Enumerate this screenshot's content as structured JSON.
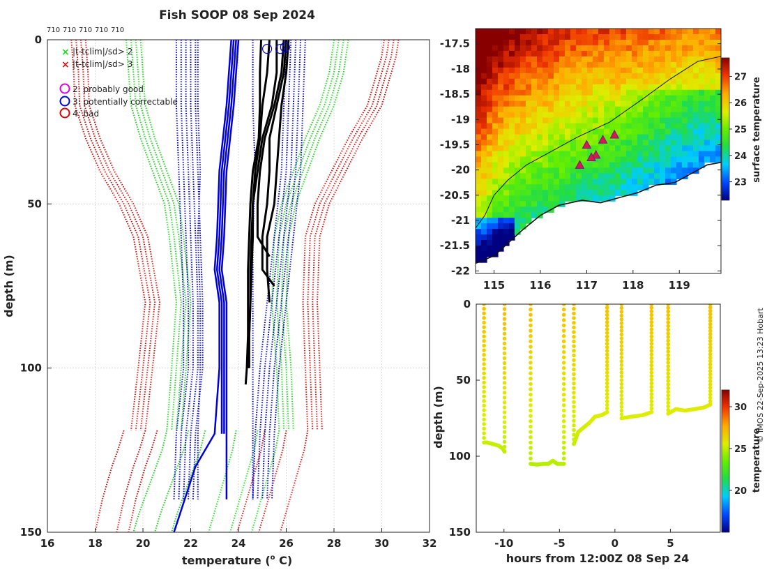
{
  "title": "Fish SOOP 08 Sep 2024",
  "profile_ids": [
    "710",
    "710",
    "710",
    "710",
    "710"
  ],
  "credit": "© IMOS 22-Sep-2025 13:23 Hobart",
  "colors": {
    "climatology_sd2": "#22dd22",
    "climatology_sd3": "#dd1111",
    "profiles": "#000000",
    "highlight_profiles": "#0000dd",
    "grid": "#cfcfcf",
    "qc_good": "#dd00dd",
    "qc_correctable": "#0000dd",
    "qc_bad": "#dd0000"
  },
  "legend": {
    "sd2": "|t-tclim|/sd> 2",
    "sd3": "|t-tclim|/sd> 3",
    "qc2": "2: probably good",
    "qc3": "3: potentially correctable",
    "qc4": "4: bad"
  },
  "chart_data": [
    {
      "id": "profiles",
      "type": "line",
      "title": "Fish SOOP 08 Sep 2024",
      "xlabel": "temperature (o C)",
      "xlabel_parts": {
        "pre": "temperature (",
        "sup": "o",
        "post": " C)"
      },
      "ylabel": "depth (m)",
      "xlim": [
        16,
        32
      ],
      "ylim": [
        0,
        150
      ],
      "yreversed": true,
      "xticks": [
        16,
        18,
        20,
        22,
        24,
        26,
        28,
        30,
        32
      ],
      "yticks": [
        0,
        50,
        100,
        150
      ],
      "grid": true,
      "climatology": [
        {
          "name": "clim-sd3-left",
          "sd": 3,
          "dx": [
            0,
            0.2,
            0.4,
            0.6
          ],
          "depth": [
            0,
            5,
            10,
            20,
            30,
            40,
            50,
            60,
            80,
            100,
            119
          ],
          "temp": [
            17.0,
            17.05,
            17.1,
            17.15,
            17.6,
            18.2,
            19.0,
            19.6,
            20.1,
            19.8,
            19.5
          ]
        },
        {
          "name": "clim-sd2-left",
          "sd": 2,
          "dx": [
            0,
            0.2,
            0.4,
            0.6
          ],
          "depth": [
            0,
            5,
            10,
            20,
            30,
            40,
            50,
            60,
            80,
            100,
            119
          ],
          "temp": [
            19.3,
            19.35,
            19.4,
            19.5,
            19.9,
            20.4,
            20.9,
            21.1,
            21.4,
            21.2,
            21.0
          ]
        },
        {
          "name": "clim-sd2-right",
          "sd": 2,
          "dx": [
            0,
            0.2,
            0.4,
            0.6
          ],
          "depth": [
            0,
            5,
            10,
            20,
            30,
            40,
            50,
            60,
            80,
            100,
            119
          ],
          "temp": [
            28.0,
            27.9,
            27.8,
            27.4,
            26.8,
            26.3,
            25.8,
            25.5,
            25.4,
            25.6,
            25.7
          ]
        },
        {
          "name": "clim-sd3-right",
          "sd": 3,
          "dx": [
            0,
            0.2,
            0.4,
            0.6
          ],
          "depth": [
            0,
            5,
            10,
            20,
            30,
            40,
            50,
            60,
            80,
            100,
            119
          ],
          "temp": [
            30.1,
            30.0,
            29.8,
            29.4,
            28.6,
            27.9,
            27.2,
            26.8,
            26.7,
            26.8,
            26.9
          ]
        },
        {
          "name": "clim-sd3-left-deep",
          "sd": 3,
          "dx": [
            0,
            0.9,
            1.4
          ],
          "depth": [
            119,
            125,
            130,
            135,
            140,
            145,
            150
          ],
          "temp": [
            19.2,
            18.95,
            18.7,
            18.5,
            18.3,
            18.15,
            18.0
          ]
        },
        {
          "name": "clim-sd2-left-deep",
          "sd": 2,
          "dx": [
            0,
            0.9,
            1.6
          ],
          "depth": [
            119,
            125,
            130,
            135,
            140,
            145,
            150
          ],
          "temp": [
            21.0,
            20.8,
            20.55,
            20.3,
            20.05,
            19.8,
            19.6
          ]
        },
        {
          "name": "clim-sd2-right-deep",
          "sd": 2,
          "dx": [
            0,
            -0.9,
            -1.8
          ],
          "depth": [
            119,
            125,
            130,
            135,
            140,
            145,
            150
          ],
          "temp": [
            25.7,
            25.55,
            25.35,
            25.15,
            24.95,
            24.75,
            24.55
          ]
        },
        {
          "name": "clim-sd3-right-deep",
          "sd": 3,
          "dx": [
            0,
            -0.9,
            -1.8
          ],
          "depth": [
            119,
            125,
            130,
            135,
            140,
            145,
            150
          ],
          "temp": [
            26.9,
            26.75,
            26.55,
            26.35,
            26.15,
            25.95,
            25.75
          ]
        },
        {
          "name": "clim-mid-left",
          "sd": 1,
          "dx": [
            0,
            0.2,
            0.4,
            0.6,
            0.8
          ],
          "depth": [
            0,
            20,
            40,
            60,
            80,
            100,
            120,
            140
          ],
          "temp": [
            21.4,
            21.4,
            21.5,
            21.6,
            21.7,
            21.7,
            21.4,
            21.3
          ],
          "color": "blue"
        },
        {
          "name": "clim-mid-right",
          "sd": 1,
          "dx": [
            0,
            0.2,
            0.4,
            0.6,
            0.8
          ],
          "depth": [
            0,
            20,
            40,
            60,
            80,
            100,
            120,
            140
          ],
          "temp": [
            26.0,
            25.9,
            25.8,
            25.5,
            25.2,
            24.9,
            24.7,
            24.6
          ],
          "color": "blue"
        }
      ],
      "profiles": [
        {
          "name": "profile-1",
          "depth": [
            0,
            10,
            20,
            30,
            40,
            50,
            60,
            70,
            80,
            90,
            100,
            105
          ],
          "temp": [
            24.95,
            24.9,
            24.9,
            24.85,
            24.6,
            24.5,
            24.45,
            24.4,
            24.4,
            24.4,
            24.35,
            24.3
          ]
        },
        {
          "name": "profile-2",
          "depth": [
            0,
            10,
            20,
            30,
            40,
            50,
            60,
            70,
            80,
            90,
            100
          ],
          "temp": [
            25.6,
            25.6,
            25.4,
            25.0,
            24.8,
            24.6,
            24.6,
            24.55,
            24.5,
            24.45,
            24.4
          ]
        },
        {
          "name": "profile-3",
          "depth": [
            0,
            10,
            20,
            30,
            40,
            50,
            60,
            66
          ],
          "temp": [
            25.9,
            25.8,
            25.5,
            25.1,
            24.9,
            24.8,
            24.8,
            25.3
          ]
        },
        {
          "name": "profile-4",
          "depth": [
            0,
            10,
            20,
            30,
            40,
            50,
            60,
            70,
            75
          ],
          "temp": [
            26.0,
            25.9,
            25.6,
            25.3,
            25.3,
            25.2,
            25.0,
            25.0,
            25.5
          ]
        },
        {
          "name": "profile-5",
          "depth": [
            0,
            10,
            20,
            30,
            40,
            50,
            60,
            70,
            80
          ],
          "temp": [
            26.1,
            26.0,
            25.8,
            25.7,
            25.6,
            25.5,
            25.2,
            25.2,
            25.3
          ]
        },
        {
          "name": "profile-6",
          "depth": [
            0,
            10,
            20,
            30,
            40,
            50,
            60,
            70,
            80,
            90,
            100
          ],
          "temp": [
            25.3,
            25.2,
            25.0,
            24.9,
            24.7,
            24.6,
            24.55,
            24.5,
            24.5,
            24.45,
            24.45
          ]
        }
      ],
      "blue_profiles": [
        {
          "name": "blue-1",
          "depth": [
            0,
            20,
            40,
            60,
            70,
            80,
            100,
            120
          ],
          "temp": [
            23.8,
            23.6,
            23.3,
            23.2,
            23.1,
            23.3,
            23.3,
            23.3
          ]
        },
        {
          "name": "blue-2",
          "depth": [
            0,
            20,
            40,
            60,
            70,
            80,
            100,
            120
          ],
          "temp": [
            23.9,
            23.7,
            23.4,
            23.3,
            23.2,
            23.4,
            23.4,
            23.4
          ]
        },
        {
          "name": "blue-3",
          "depth": [
            0,
            20,
            40,
            60,
            70,
            80,
            100,
            140
          ],
          "temp": [
            24.0,
            23.8,
            23.5,
            23.4,
            23.3,
            23.5,
            23.5,
            23.5
          ]
        },
        {
          "name": "blue-4",
          "depth": [
            0,
            20,
            40,
            60,
            70,
            80,
            100,
            120,
            130,
            150
          ],
          "temp": [
            23.7,
            23.5,
            23.2,
            23.1,
            23.0,
            23.2,
            23.2,
            23.0,
            22.2,
            21.3
          ]
        },
        {
          "name": "blue-dotted-1",
          "depth": [
            0,
            20,
            40,
            60,
            80,
            100,
            120,
            140
          ],
          "temp": [
            22.3,
            22.3,
            22.4,
            22.3,
            22.4,
            22.4,
            22.3,
            22.3
          ],
          "dotted": true
        },
        {
          "name": "blue-dotted-2",
          "depth": [
            0,
            20,
            40,
            60,
            80,
            100,
            120,
            140
          ],
          "temp": [
            24.6,
            24.6,
            24.7,
            24.6,
            24.6,
            24.6,
            24.6,
            24.6
          ],
          "dotted": true
        }
      ],
      "qc_markers": [
        {
          "flag": 3,
          "depth": 1.5,
          "temp": 25.2
        },
        {
          "flag": 3,
          "depth": 1.5,
          "temp": 25.75
        },
        {
          "flag": 3,
          "depth": 1.0,
          "temp": 25.95
        }
      ],
      "legend_placement": "top-left"
    },
    {
      "id": "map",
      "type": "heatmap",
      "colorbar_label": "surface temperature",
      "xlim": [
        114.6,
        119.9
      ],
      "ylim": [
        -22.05,
        -17.2
      ],
      "xticks": [
        115,
        116,
        117,
        118,
        119
      ],
      "yticks": [
        -17.5,
        -18,
        -18.5,
        -19,
        -19.5,
        -20,
        -20.5,
        -21,
        -21.5,
        -22
      ],
      "clim": [
        22.3,
        27.7
      ],
      "colorbar_ticks": [
        23,
        24,
        25,
        26,
        27
      ],
      "stations": [
        {
          "lon": 117.6,
          "lat": -19.3
        },
        {
          "lon": 117.35,
          "lat": -19.4
        },
        {
          "lon": 117.0,
          "lat": -19.5
        },
        {
          "lon": 117.2,
          "lat": -19.7
        },
        {
          "lon": 117.1,
          "lat": -19.75
        },
        {
          "lon": 116.85,
          "lat": -19.9
        }
      ],
      "contour": {
        "lon": [
          114.6,
          114.8,
          115.0,
          115.3,
          115.7,
          116.2,
          116.8,
          117.5,
          118.2,
          118.8,
          119.4,
          119.9
        ],
        "lat": [
          -21.15,
          -20.9,
          -20.5,
          -20.2,
          -19.9,
          -19.65,
          -19.35,
          -19.05,
          -18.6,
          -18.2,
          -17.85,
          -17.75
        ]
      },
      "coast": {
        "lon": [
          114.6,
          115.0,
          115.3,
          115.6,
          116.0,
          116.4,
          116.9,
          117.3,
          117.7,
          118.1,
          118.5,
          118.9,
          119.3,
          119.6,
          119.9
        ],
        "lat": [
          -21.85,
          -21.7,
          -21.45,
          -21.2,
          -20.9,
          -20.7,
          -20.6,
          -20.65,
          -20.55,
          -20.45,
          -20.3,
          -20.25,
          -20.05,
          -19.9,
          -19.85
        ]
      }
    },
    {
      "id": "time-depth",
      "type": "scatter",
      "xlabel": "hours from 12:00Z 08 Sep 24",
      "ylabel": "depth (m)",
      "xlim": [
        -12.5,
        9.5
      ],
      "ylim": [
        0,
        150
      ],
      "yreversed": true,
      "xticks": [
        -10,
        -5,
        0,
        5
      ],
      "yticks": [
        0,
        50,
        100,
        150
      ],
      "clim": [
        15,
        32
      ],
      "colorbar_label": "temperature",
      "colorbar_ticks": [
        20,
        25,
        30
      ],
      "casts": [
        {
          "start": -11.8,
          "end": -9.9,
          "bottom": [
            [
              -11.8,
              91
            ],
            [
              -11.5,
              91
            ],
            [
              -11.0,
              92
            ],
            [
              -10.5,
              93
            ],
            [
              -10.1,
              95
            ],
            [
              -9.95,
              97
            ]
          ]
        },
        {
          "start": -7.6,
          "end": -4.5,
          "bottom": [
            [
              -7.6,
              105
            ],
            [
              -7.0,
              105.5
            ],
            [
              -6.5,
              105
            ],
            [
              -6.0,
              105
            ],
            [
              -5.6,
              103
            ],
            [
              -5.2,
              105
            ],
            [
              -4.6,
              105
            ]
          ]
        },
        {
          "start": -3.7,
          "end": -0.7,
          "bottom": [
            [
              -3.7,
              92
            ],
            [
              -3.3,
              84
            ],
            [
              -2.8,
              81
            ],
            [
              -2.3,
              78
            ],
            [
              -1.8,
              74
            ],
            [
              -1.2,
              73
            ],
            [
              -0.7,
              71
            ]
          ]
        },
        {
          "start": 0.6,
          "end": 3.4,
          "bottom": [
            [
              0.6,
              75
            ],
            [
              1.5,
              74
            ],
            [
              2.5,
              73
            ],
            [
              3.3,
              71
            ]
          ]
        },
        {
          "start": 4.8,
          "end": 8.7,
          "bottom": [
            [
              4.8,
              72
            ],
            [
              5.5,
              69
            ],
            [
              6.3,
              70
            ],
            [
              7.2,
              69
            ],
            [
              8.0,
              68
            ],
            [
              8.6,
              66
            ]
          ]
        }
      ]
    }
  ]
}
